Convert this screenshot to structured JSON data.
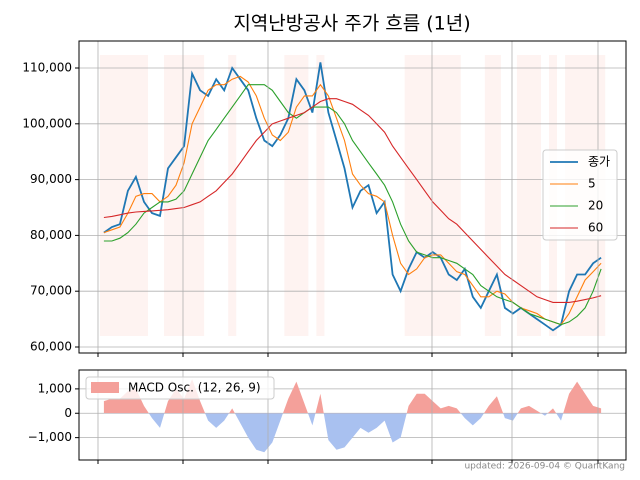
{
  "chart_data": [
    {
      "type": "line",
      "title": "지역난방공사 주가 흐름 (1년)",
      "ylim": [
        58925,
        114840
      ],
      "yticks": [
        {
          "value": 60000,
          "label": "60,000"
        },
        {
          "value": 70000,
          "label": "70,000"
        },
        {
          "value": 80000,
          "label": "80,000"
        },
        {
          "value": 90000,
          "label": "90,000"
        },
        {
          "value": 100000,
          "label": "100,000"
        },
        {
          "value": 110000,
          "label": "110,000"
        }
      ],
      "grid": true,
      "legend": "right",
      "series": [
        {
          "name": "종가",
          "color": "#1f77b4",
          "values": [
            80500,
            81500,
            82000,
            88000,
            90500,
            86000,
            84000,
            83500,
            92000,
            94000,
            96000,
            109000,
            106000,
            105000,
            108000,
            106000,
            110000,
            108000,
            106000,
            101000,
            97000,
            96000,
            98000,
            101000,
            108000,
            106000,
            102000,
            111000,
            102000,
            97000,
            92000,
            85000,
            88000,
            89000,
            84000,
            86000,
            73000,
            70000,
            74000,
            77000,
            76000,
            77000,
            76000,
            73000,
            72000,
            74000,
            69000,
            67000,
            70000,
            73000,
            67000,
            66000,
            67000,
            66000,
            65000,
            64000,
            63000,
            64000,
            70000,
            73000,
            73000,
            75000,
            76000
          ]
        },
        {
          "name": "5",
          "color": "#ff7f0e",
          "values": [
            80500,
            81000,
            81500,
            84000,
            87000,
            87500,
            87500,
            86000,
            87000,
            89000,
            93000,
            100000,
            103000,
            106000,
            107000,
            107000,
            108000,
            108500,
            107500,
            105000,
            101000,
            98000,
            97000,
            98500,
            103000,
            105000,
            105000,
            107000,
            105000,
            101000,
            97000,
            91000,
            89000,
            87500,
            87000,
            86000,
            80000,
            75000,
            73000,
            74000,
            76000,
            76500,
            76500,
            75000,
            73500,
            73000,
            71000,
            69000,
            69000,
            70000,
            69500,
            68000,
            67000,
            66500,
            66000,
            65000,
            64500,
            64000,
            66000,
            69000,
            72000,
            73500,
            75000
          ]
        },
        {
          "name": "20",
          "color": "#2ca02c",
          "values": [
            79000,
            79000,
            79500,
            80500,
            82000,
            84000,
            85000,
            86000,
            86000,
            86500,
            88000,
            91000,
            94000,
            97000,
            99000,
            101000,
            103000,
            105000,
            107000,
            107000,
            107000,
            106000,
            104000,
            102000,
            101000,
            102000,
            103000,
            103000,
            103000,
            102000,
            100000,
            97000,
            95000,
            93000,
            91000,
            89000,
            86000,
            82000,
            79000,
            77000,
            76500,
            76000,
            76000,
            75500,
            75000,
            74000,
            73000,
            71000,
            70000,
            69000,
            68500,
            68000,
            67000,
            66000,
            65500,
            65000,
            64500,
            64000,
            64500,
            65500,
            67000,
            70000,
            74000
          ]
        },
        {
          "name": "60",
          "color": "#d62728",
          "values": [
            83200,
            83400,
            83700,
            84000,
            84200,
            84300,
            84400,
            84500,
            84600,
            84800,
            85000,
            85500,
            86000,
            87000,
            88000,
            89500,
            91000,
            93000,
            95000,
            97000,
            98500,
            100000,
            100500,
            101000,
            101500,
            102000,
            103000,
            104000,
            104500,
            104500,
            104000,
            103500,
            102500,
            101500,
            100000,
            98500,
            96000,
            94000,
            92000,
            90000,
            88000,
            86000,
            84500,
            83000,
            82000,
            80500,
            79000,
            77500,
            76000,
            74500,
            73000,
            72000,
            71000,
            70000,
            69000,
            68500,
            68000,
            68000,
            68000,
            68200,
            68500,
            68800,
            69200
          ]
        }
      ]
    },
    {
      "type": "area",
      "ylim": [
        -1918,
        1775
      ],
      "yticks": [
        {
          "value": -1000,
          "label": "−1,000"
        },
        0,
        {
          "value": 1000,
          "label": "1,000"
        }
      ],
      "grid": true,
      "legend": "upper left",
      "series": [
        {
          "name": "MACD Osc. (12, 26, 9)",
          "color": "#f4a09a",
          "negative_color": "#a9c1f0",
          "values": [
            500,
            600,
            600,
            900,
            1000,
            300,
            -200,
            -600,
            500,
            1000,
            600,
            1400,
            500,
            -300,
            -600,
            -300,
            200,
            -400,
            -1000,
            -1500,
            -1600,
            -1200,
            -300,
            600,
            1300,
            400,
            -500,
            800,
            -1100,
            -1500,
            -1400,
            -1000,
            -600,
            -800,
            -600,
            -300,
            -1200,
            -1000,
            300,
            800,
            800,
            500,
            200,
            300,
            200,
            -200,
            -500,
            -200,
            300,
            700,
            -200,
            -300,
            200,
            300,
            100,
            -100,
            200,
            -300,
            800,
            1300,
            800,
            300,
            200
          ]
        }
      ]
    }
  ],
  "footer": "updated: 2026-09-04 © QuantKang"
}
